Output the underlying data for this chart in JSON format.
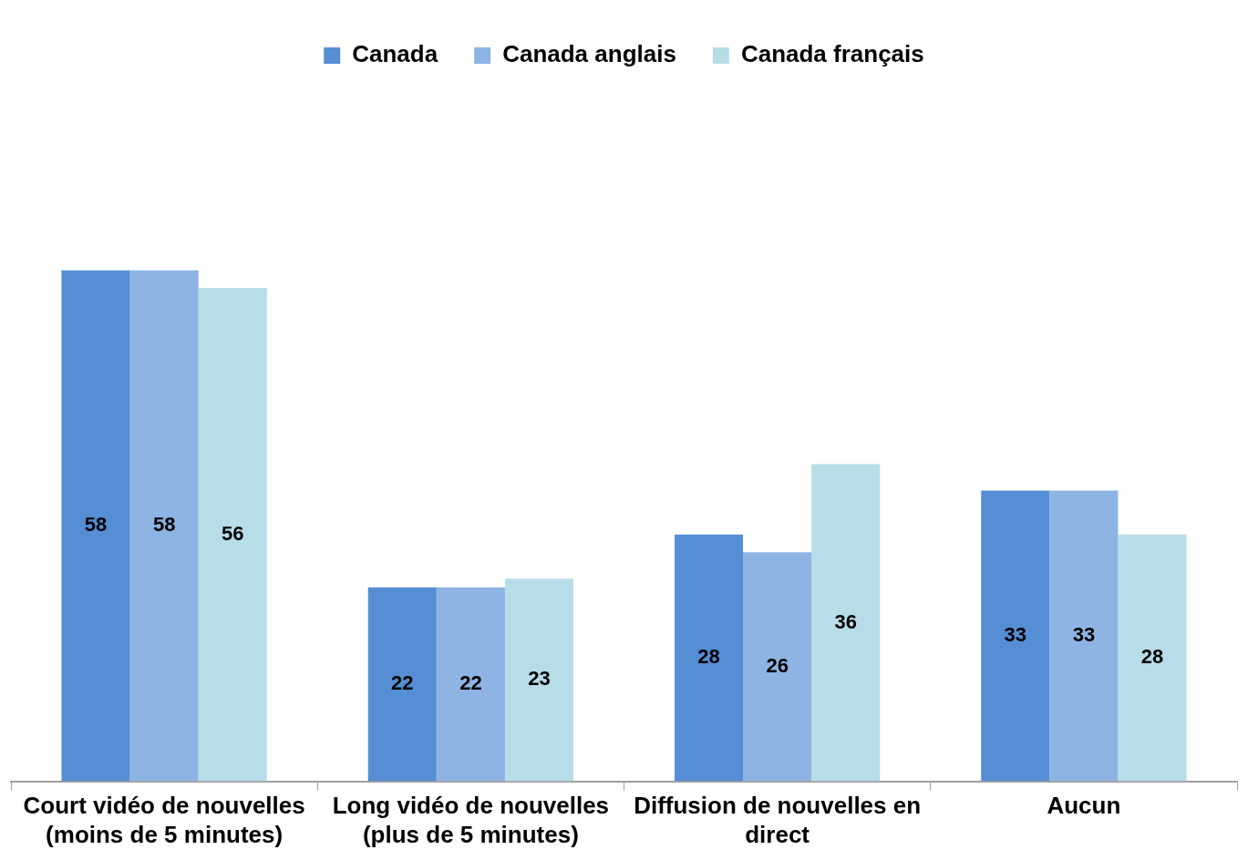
{
  "chart_data": {
    "type": "bar",
    "categories": [
      "Court vidéo de nouvelles (moins de 5 minutes)",
      "Long vidéo de nouvelles (plus de 5 minutes)",
      "Diffusion de nouvelles en direct",
      "Aucun"
    ],
    "series": [
      {
        "name": "Canada",
        "color": "#558ed5",
        "values": [
          58,
          22,
          28,
          33
        ]
      },
      {
        "name": "Canada anglais",
        "color": "#8eb4e3",
        "values": [
          58,
          22,
          26,
          33
        ]
      },
      {
        "name": "Canada français",
        "color": "#b7dee8",
        "values": [
          56,
          23,
          36,
          28
        ]
      }
    ],
    "data_labels": true,
    "legend": "top",
    "grid": false
  }
}
